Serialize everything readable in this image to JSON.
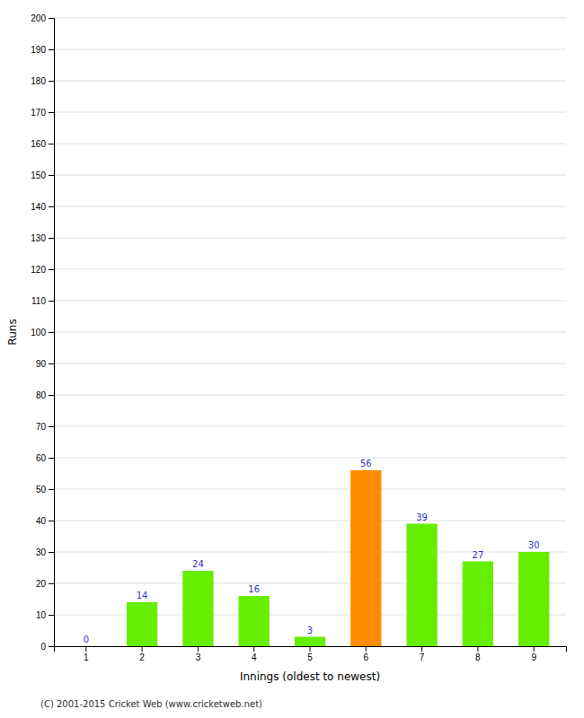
{
  "chart_data": {
    "type": "bar",
    "categories": [
      "1",
      "2",
      "3",
      "4",
      "5",
      "6",
      "7",
      "8",
      "9"
    ],
    "values": [
      0,
      14,
      24,
      16,
      3,
      56,
      39,
      27,
      30
    ],
    "colors": [
      "#66ee00",
      "#66ee00",
      "#66ee00",
      "#66ee00",
      "#66ee00",
      "#ff8c00",
      "#66ee00",
      "#66ee00",
      "#66ee00"
    ],
    "xlabel": "Innings (oldest to newest)",
    "ylabel": "Runs",
    "ylim": [
      0,
      200
    ],
    "yticks": [
      0,
      10,
      20,
      30,
      40,
      50,
      60,
      70,
      80,
      90,
      100,
      110,
      120,
      130,
      140,
      150,
      160,
      170,
      180,
      190,
      200
    ],
    "grid": true,
    "data_labels": true,
    "annotations": [
      "(C) 2001-2015 Cricket Web (www.cricketweb.net)"
    ]
  }
}
